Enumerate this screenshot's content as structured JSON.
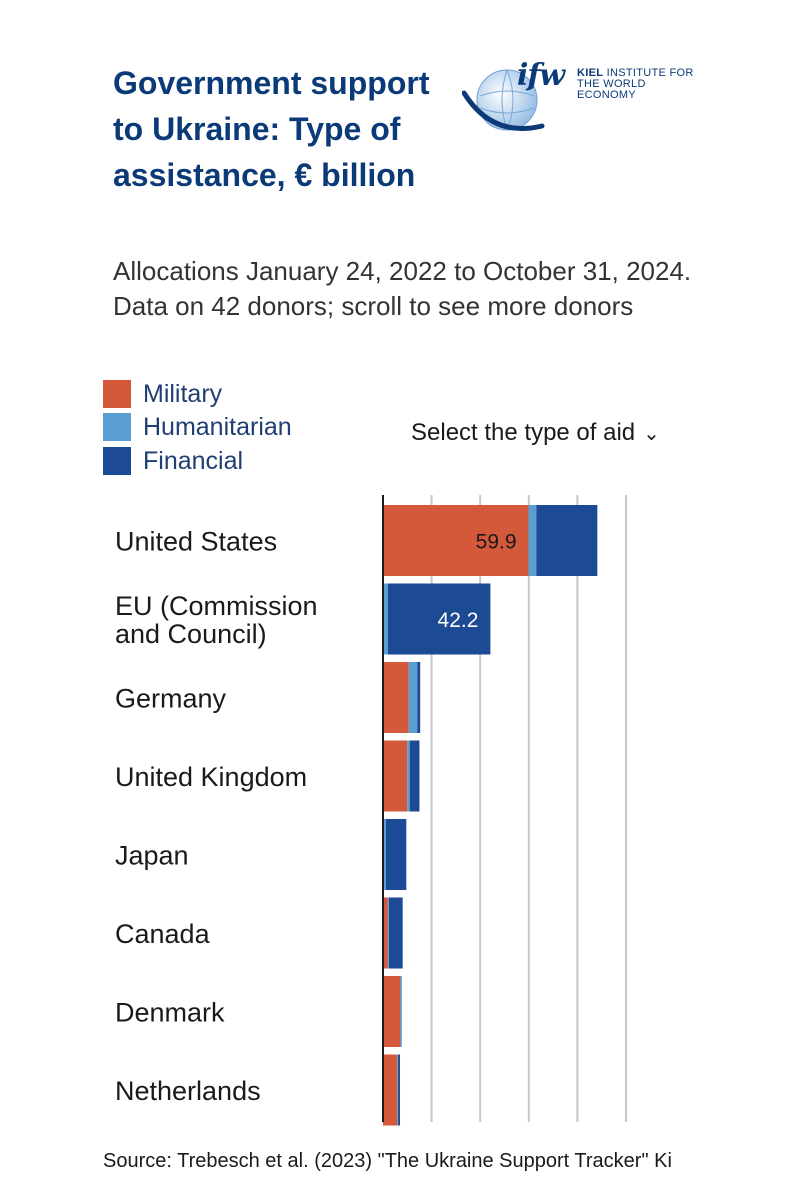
{
  "title": "Government support to Ukraine: Type of assistance, € billion",
  "subtitle": "Allocations January 24, 2022 to October 31, 2024. Data on 42 donors; scroll to see more donors",
  "logo": {
    "mark": "ifw",
    "line1_bold": "KIEL",
    "line1": " INSTITUTE FOR",
    "line2": "THE WORLD ECONOMY"
  },
  "legend": [
    {
      "label": "Military",
      "color": "#d4593a"
    },
    {
      "label": "Humanitarian",
      "color": "#5a9fd4"
    },
    {
      "label": "Financial",
      "color": "#1c4a94"
    }
  ],
  "select_label": "Select the type of aid",
  "source": "Source: Trebesch et al. (2023) \"The Ukraine Support Tracker\" Ki",
  "chart_data": {
    "type": "bar",
    "orientation": "horizontal",
    "stacked": true,
    "title": "Government support to Ukraine: Type of assistance, € billion",
    "categories": [
      "United States",
      "EU (Commission and Council)",
      "Germany",
      "United Kingdom",
      "Japan",
      "Canada",
      "Denmark",
      "Netherlands"
    ],
    "category_lines": [
      [
        "United States"
      ],
      [
        "EU (Commission",
        "and Council)"
      ],
      [
        "Germany"
      ],
      [
        "United Kingdom"
      ],
      [
        "Japan"
      ],
      [
        "Canada"
      ],
      [
        "Denmark"
      ],
      [
        "Netherlands"
      ]
    ],
    "series": [
      {
        "name": "Military",
        "color": "#d4593a",
        "values": [
          59.9,
          0.0,
          10.6,
          10.0,
          0.0,
          2.0,
          7.0,
          5.9
        ]
      },
      {
        "name": "Humanitarian",
        "color": "#5a9fd4",
        "values": [
          3.2,
          2.0,
          3.5,
          1.0,
          1.2,
          0.4,
          0.3,
          0.3
        ]
      },
      {
        "name": "Financial",
        "color": "#1c4a94",
        "values": [
          25.1,
          42.2,
          1.2,
          4.0,
          8.4,
          5.7,
          0.3,
          0.8
        ]
      }
    ],
    "data_labels": [
      {
        "category": "United States",
        "series": "Military",
        "text": "59.9"
      },
      {
        "category": "EU (Commission and Council)",
        "series": "Financial",
        "text": "42.2"
      }
    ],
    "xlim": [
      0,
      100
    ],
    "gridlines": [
      20,
      40,
      60,
      80,
      100
    ],
    "xlabel": "",
    "ylabel": ""
  }
}
